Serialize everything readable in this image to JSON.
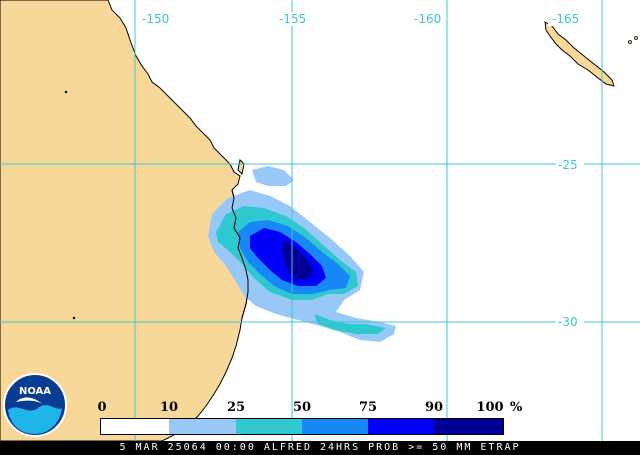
{
  "map": {
    "lon_labels": [
      "-150",
      "-155",
      "-160",
      "-165"
    ],
    "lat_labels": [
      "-25",
      "-30"
    ],
    "colors": {
      "land": "#f8d898",
      "coast": "#000000",
      "grid": "#3cc8d0",
      "ocean": "#ffffff"
    }
  },
  "legend": {
    "ticks": [
      "0",
      "10",
      "25",
      "50",
      "75",
      "90",
      "100"
    ],
    "unit": "%",
    "colors": [
      "#ffffff",
      "#98c8f8",
      "#30c8d0",
      "#1888f8",
      "#0000f8",
      "#000098"
    ]
  },
  "footer": {
    "text": "5 MAR 25064 00:00 ALFRED 24HRS PROB >= 50 MM ETRAP"
  },
  "logo": {
    "text": "NOAA"
  }
}
